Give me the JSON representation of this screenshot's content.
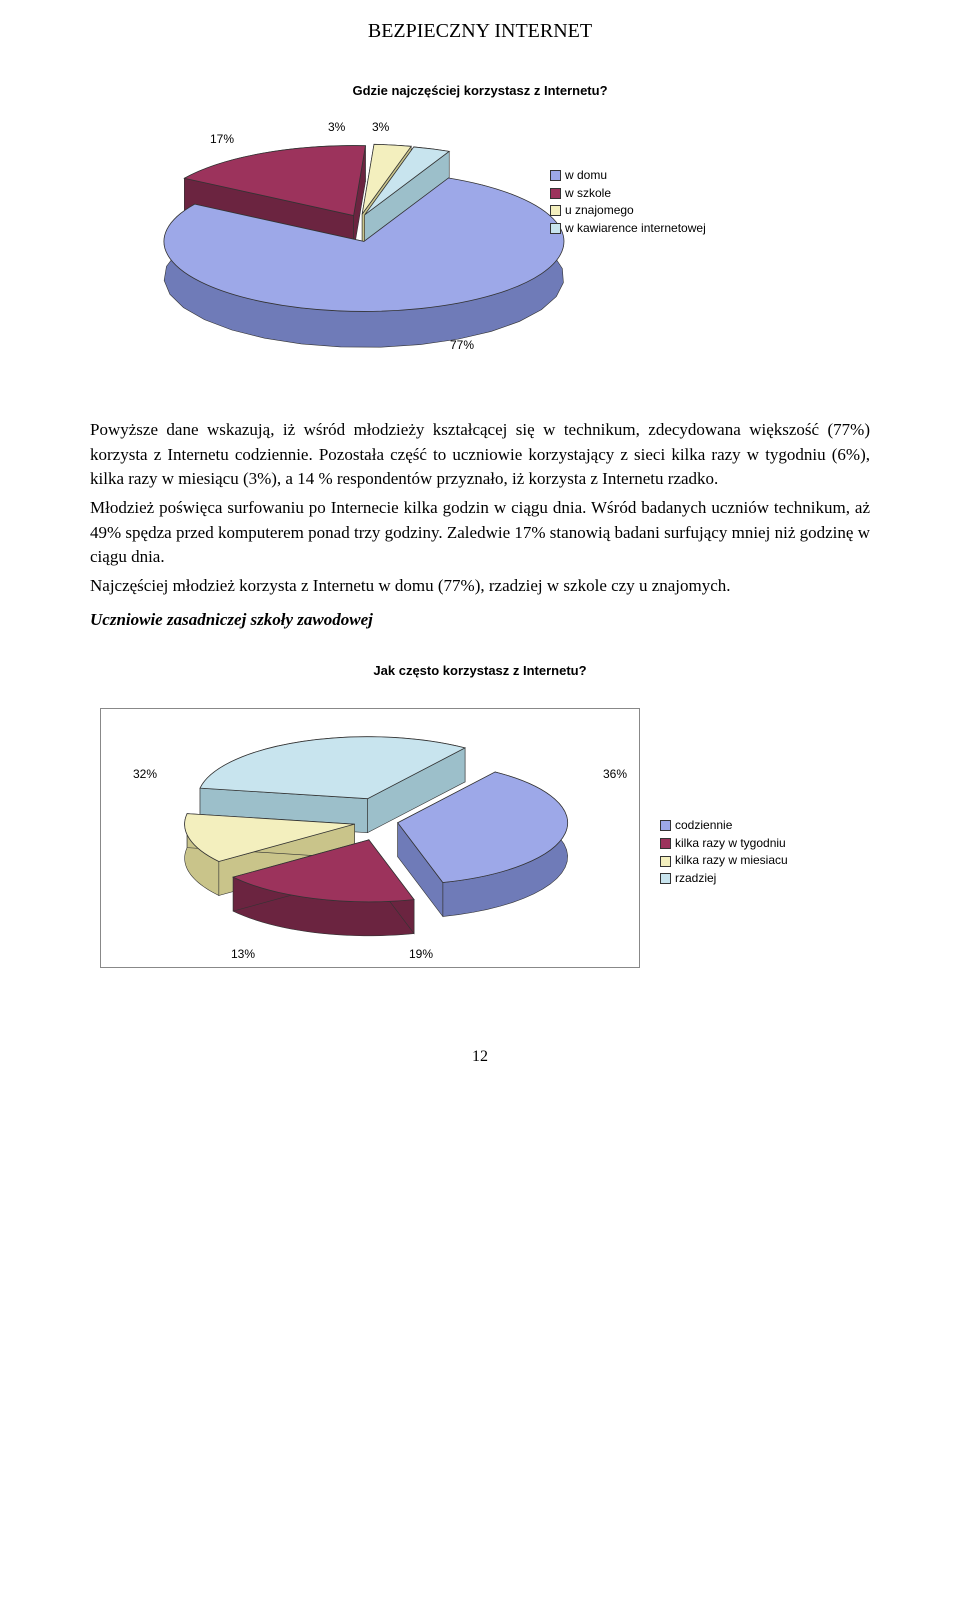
{
  "header": "BEZPIECZNY INTERNET",
  "chart1": {
    "type": "pie",
    "title": "Gdzie najczęściej korzystasz z Internetu?",
    "slices": [
      {
        "label": "w domu",
        "value": 77,
        "color": "#9da8e8"
      },
      {
        "label": "w szkole",
        "value": 17,
        "color": "#9c335c"
      },
      {
        "label": "u znajomego",
        "value": 3,
        "color": "#f3efbe"
      },
      {
        "label": "w kawiarence internetowej",
        "value": 3,
        "color": "#c8e4ee"
      }
    ],
    "side_color": "#6f7bb8",
    "side_colors": [
      "#6f7bb8",
      "#6b2440",
      "#c9c48a",
      "#9cbfca"
    ],
    "label_17": "17%",
    "label_3a": "3%",
    "label_3b": "3%",
    "label_77": "77%"
  },
  "paragraphs": {
    "p1": "Powyższe dane wskazują, iż wśród młodzieży kształcącej się w technikum, zdecydowana większość (77%) korzysta z Internetu codziennie. Pozostała część to uczniowie korzystający z sieci kilka razy w tygodniu (6%), kilka razy w miesiącu (3%), a 14 % respondentów przyznało, iż korzysta z Internetu rzadko.",
    "p2": "Młodzież poświęca surfowaniu po Internecie kilka godzin w ciągu dnia. Wśród badanych uczniów technikum, aż 49% spędza przed komputerem ponad trzy godziny. Zaledwie 17% stanowią badani surfujący mniej niż godzinę w ciągu dnia.",
    "p3": "Najczęściej młodzież korzysta z Internetu w domu (77%), rzadziej w szkole czy u znajomych.",
    "sub": "Uczniowie zasadniczej szkoły zawodowej"
  },
  "chart2": {
    "type": "pie",
    "title": "Jak często korzystasz z Internetu?",
    "slices": [
      {
        "label": "codziennie",
        "value": 36,
        "color": "#9da8e8"
      },
      {
        "label": "kilka razy w tygodniu",
        "value": 19,
        "color": "#9c335c"
      },
      {
        "label": "kilka razy w miesiacu",
        "value": 13,
        "color": "#f3efbe"
      },
      {
        "label": "rzadziej",
        "value": 32,
        "color": "#c8e4ee"
      }
    ],
    "side_colors": [
      "#6f7bb8",
      "#6b2440",
      "#c9c48a",
      "#9cbfca"
    ],
    "label_36": "36%",
    "label_19": "19%",
    "label_13": "13%",
    "label_32": "32%"
  },
  "page_number": "12"
}
